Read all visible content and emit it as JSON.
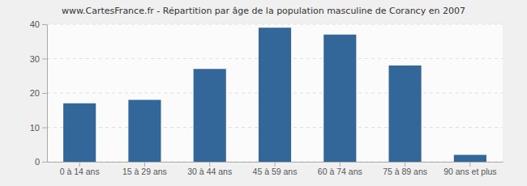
{
  "chart_data": {
    "type": "bar",
    "title": "www.CartesFrance.fr - Répartition par âge de la population masculine de Corancy en 2007",
    "categories": [
      "0 à 14 ans",
      "15 à 29 ans",
      "30 à 44 ans",
      "45 à 59 ans",
      "60 à 74 ans",
      "75 à 89 ans",
      "90 ans et plus"
    ],
    "values": [
      17,
      18,
      27,
      39,
      37,
      28,
      2
    ],
    "color": "#336699",
    "ylim": [
      0,
      40
    ],
    "yticks": [
      0,
      10,
      20,
      30,
      40
    ],
    "grid": true
  }
}
